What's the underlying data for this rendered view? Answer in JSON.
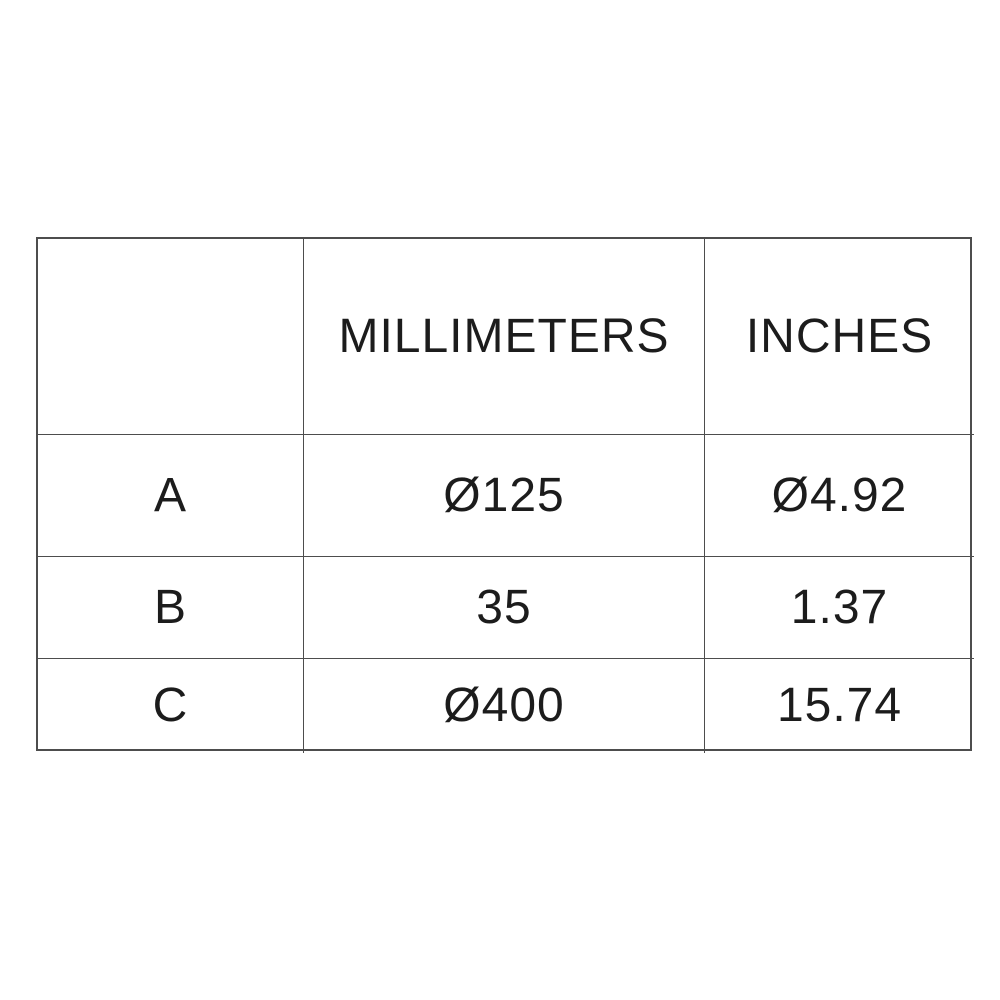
{
  "chart_data": {
    "type": "table",
    "title": "Dimensions table",
    "columns": [
      "",
      "MILLIMETERS",
      "INCHES"
    ],
    "rows": [
      [
        "A",
        "Ø125",
        "Ø4.92"
      ],
      [
        "B",
        "35",
        "1.37"
      ],
      [
        "C",
        "Ø400",
        "15.74"
      ]
    ]
  },
  "table": {
    "header": {
      "empty": "",
      "millimeters": "MILLIMETERS",
      "inches": "INCHES"
    },
    "rows": [
      {
        "label": "A",
        "millimeters": "Ø125",
        "inches": "Ø4.92"
      },
      {
        "label": "B",
        "millimeters": "35",
        "inches": "1.37"
      },
      {
        "label": "C",
        "millimeters": "Ø400",
        "inches": "15.74"
      }
    ]
  },
  "colors": {
    "background": "#ffffff",
    "border": "#4d4d4d",
    "text": "#1c1c1c"
  }
}
